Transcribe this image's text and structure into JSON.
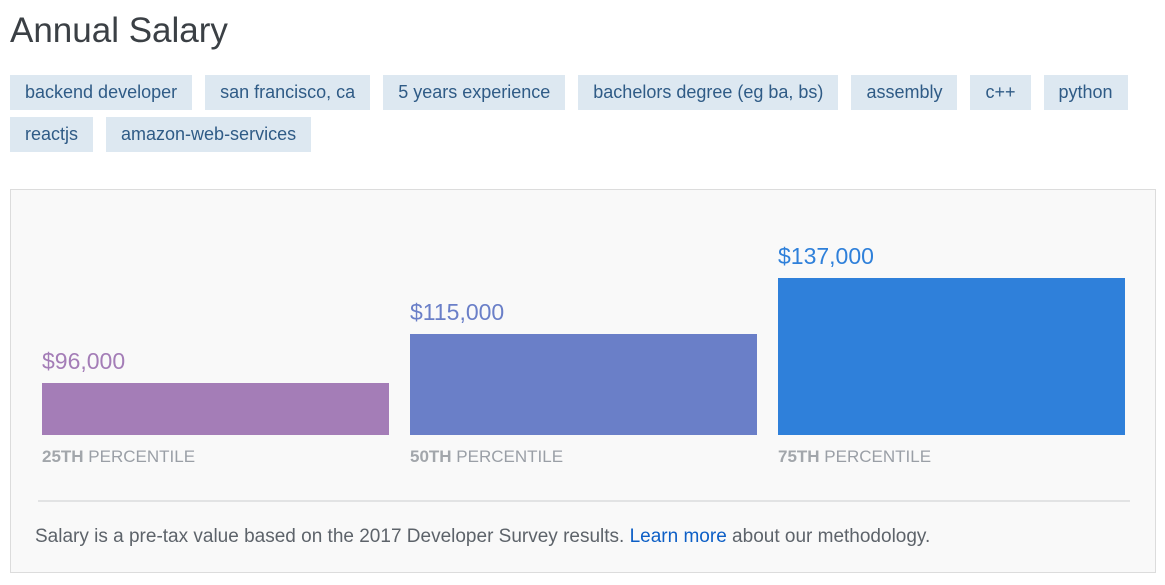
{
  "page_title": "Annual Salary",
  "tags": [
    "backend developer",
    "san francisco, ca",
    "5 years experience",
    "bachelors degree (eg ba, bs)",
    "assembly",
    "c++",
    "python",
    "reactjs",
    "amazon-web-services"
  ],
  "chart_data": {
    "type": "bar",
    "categories": [
      "25TH",
      "50TH",
      "75TH"
    ],
    "category_suffix": "PERCENTILE",
    "values": [
      96000,
      115000,
      137000
    ],
    "value_labels": [
      "$96,000",
      "$115,000",
      "$137,000"
    ],
    "colors": [
      "#a47db7",
      "#6a7fc8",
      "#2f80da"
    ],
    "title": "",
    "xlabel": "",
    "ylabel": "",
    "ylim": [
      64000,
      137000
    ],
    "grid": false,
    "legend": "none"
  },
  "footnote": {
    "before": "Salary is a pre-tax value based on the 2017 Developer Survey results. ",
    "link": "Learn more",
    "after": " about our methodology."
  }
}
